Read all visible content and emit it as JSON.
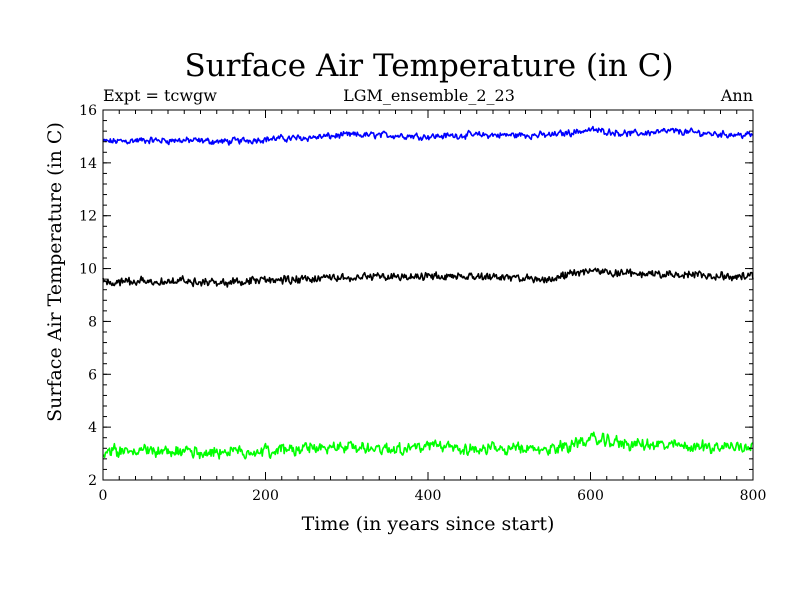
{
  "chart_data": {
    "type": "line",
    "title": "Surface Air Temperature (in C)",
    "subtitle_left": "Expt = tcwgw",
    "subtitle_center": "LGM_ensemble_2_23",
    "subtitle_right": "Ann",
    "xlabel": "Time (in years since start)",
    "ylabel": "Surface Air Temperature (in C)",
    "xlim": [
      0,
      800
    ],
    "ylim": [
      2,
      16
    ],
    "xticks": [
      "0",
      "200",
      "400",
      "600",
      "800"
    ],
    "yticks": [
      "2",
      "4",
      "6",
      "8",
      "10",
      "12",
      "14",
      "16"
    ],
    "series": [
      {
        "name": "blue",
        "color": "#0000ff",
        "x": [
          0,
          50,
          100,
          150,
          200,
          250,
          300,
          350,
          400,
          450,
          500,
          550,
          600,
          650,
          700,
          750,
          800
        ],
        "y": [
          14.8,
          14.85,
          14.85,
          14.8,
          14.9,
          14.95,
          15.05,
          15.05,
          15.0,
          15.05,
          15.05,
          15.05,
          15.25,
          15.1,
          15.2,
          15.1,
          15.05
        ]
      },
      {
        "name": "black",
        "color": "#000000",
        "x": [
          0,
          50,
          100,
          150,
          200,
          250,
          300,
          350,
          400,
          450,
          500,
          550,
          600,
          650,
          700,
          750,
          800
        ],
        "y": [
          9.5,
          9.5,
          9.55,
          9.45,
          9.55,
          9.6,
          9.65,
          9.7,
          9.7,
          9.75,
          9.65,
          9.6,
          9.95,
          9.8,
          9.8,
          9.75,
          9.7
        ]
      },
      {
        "name": "green",
        "color": "#00ff00",
        "x": [
          0,
          50,
          100,
          150,
          200,
          250,
          300,
          350,
          400,
          450,
          500,
          550,
          600,
          650,
          700,
          750,
          800
        ],
        "y": [
          3.05,
          3.1,
          3.1,
          3.05,
          3.1,
          3.2,
          3.25,
          3.2,
          3.25,
          3.2,
          3.15,
          3.15,
          3.55,
          3.35,
          3.3,
          3.25,
          3.3
        ]
      }
    ]
  }
}
